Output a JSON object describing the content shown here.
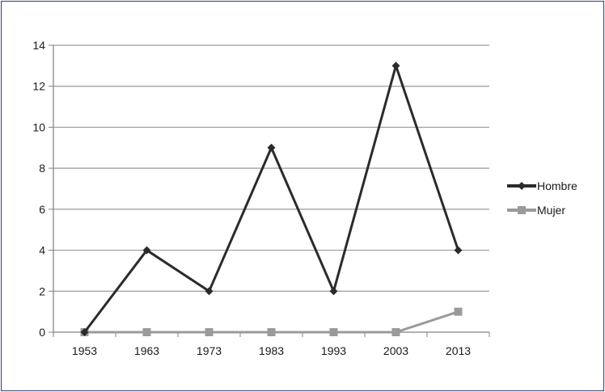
{
  "chart_data": {
    "type": "line",
    "categories": [
      "1953",
      "1963",
      "1973",
      "1983",
      "1993",
      "2003",
      "2013"
    ],
    "series": [
      {
        "name": "Hombre",
        "values": [
          0,
          4,
          2,
          9,
          2,
          13,
          4
        ],
        "color": "#2b2b2b",
        "marker": "diamond"
      },
      {
        "name": "Mujer",
        "values": [
          0,
          0,
          0,
          0,
          0,
          0,
          1
        ],
        "color": "#9a9a9a",
        "marker": "square"
      }
    ],
    "ylim": [
      0,
      14
    ],
    "yticks": [
      "0",
      "2",
      "4",
      "6",
      "8",
      "10",
      "12",
      "14"
    ],
    "grid": true,
    "legend": "right",
    "frame_color": "#2e3d7a"
  }
}
